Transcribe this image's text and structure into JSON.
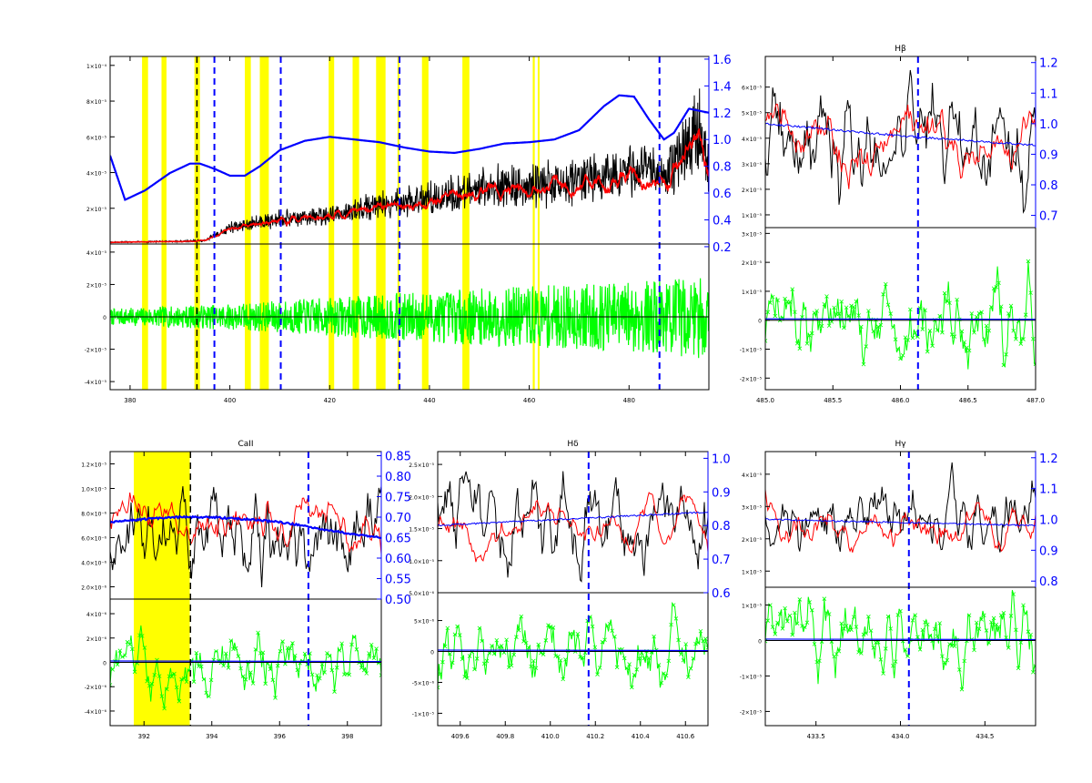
{
  "figure": {
    "colors": {
      "observed": "#000000",
      "model": "#ff0000",
      "continuum": "#0000ff",
      "residual": "#00ff00",
      "mask": "#ffff00",
      "line_marker": "#0000ff"
    }
  },
  "chart_data": [
    {
      "id": "overview",
      "type": "line",
      "title": "",
      "xlim": [
        376,
        496
      ],
      "xticks": [
        "380",
        "400",
        "420",
        "440",
        "460",
        "480"
      ],
      "xtick_values": [
        380,
        400,
        420,
        440,
        460,
        480
      ],
      "top": {
        "ylim": [
          0,
          0.000105
        ],
        "yticks": [
          "2×10⁻⁵",
          "4×10⁻⁵",
          "6×10⁻⁵",
          "8×10⁻⁵",
          "1×10⁻⁴"
        ],
        "ytick_values": [
          2e-05,
          4e-05,
          6e-05,
          8e-05,
          0.0001
        ],
        "ylim_right": [
          0.22,
          1.62
        ],
        "yticks_right": [
          "0.2",
          "0.4",
          "0.6",
          "0.8",
          "1.0",
          "1.2",
          "1.4",
          "1.6"
        ],
        "ytick_values_right": [
          0.2,
          0.4,
          0.6,
          0.8,
          1.0,
          1.2,
          1.4,
          1.6
        ],
        "continuum": {
          "x": [
            376,
            379,
            383,
            388,
            392,
            394,
            397,
            400,
            403,
            406,
            410,
            415,
            420,
            425,
            430,
            435,
            440,
            445,
            450,
            455,
            460,
            465,
            470,
            475,
            478,
            481,
            484,
            487,
            489,
            492,
            496
          ],
          "y": [
            0.88,
            0.55,
            0.62,
            0.75,
            0.82,
            0.82,
            0.78,
            0.73,
            0.73,
            0.8,
            0.92,
            0.99,
            1.02,
            1.0,
            0.98,
            0.94,
            0.91,
            0.9,
            0.93,
            0.97,
            0.98,
            1.0,
            1.07,
            1.25,
            1.33,
            1.32,
            1.15,
            1.0,
            1.05,
            1.23,
            1.2
          ]
        },
        "observed_trend": {
          "x": [
            376,
            390,
            395,
            400,
            410,
            420,
            430,
            440,
            450,
            460,
            470,
            480,
            487,
            490,
            494,
            496
          ],
          "y": [
            1e-06,
            1.5e-06,
            2e-06,
            9e-06,
            1.4e-05,
            1.6e-05,
            2.2e-05,
            2.5e-05,
            3.1e-05,
            3.3e-05,
            3.6e-05,
            4.2e-05,
            3.8e-05,
            4.8e-05,
            6.6e-05,
            4e-05
          ]
        }
      },
      "bottom": {
        "ylim": [
          -4.5e-05,
          4.5e-05
        ],
        "yticks": [
          "-4×10⁻⁵",
          "-2×10⁻⁵",
          "0",
          "2×10⁻⁵",
          "4×10⁻⁵"
        ],
        "ytick_values": [
          -4e-05,
          -2e-05,
          0,
          2e-05,
          4e-05
        ],
        "residual_amplitude": {
          "x": [
            376,
            400,
            420,
            440,
            460,
            480,
            496
          ],
          "y": [
            5e-06,
            8e-06,
            1.2e-05,
            1.6e-05,
            1.9e-05,
            2.2e-05,
            2.6e-05
          ]
        }
      },
      "mask_bands": [
        [
          382.4,
          383.6
        ],
        [
          386.3,
          387.3
        ],
        [
          392.9,
          394.0
        ],
        [
          403.0,
          404.2
        ],
        [
          406.0,
          407.8
        ],
        [
          419.8,
          420.9
        ],
        [
          424.6,
          425.9
        ],
        [
          429.3,
          431.2
        ],
        [
          433.6,
          433.9
        ],
        [
          438.5,
          439.8
        ],
        [
          446.6,
          448.0
        ],
        [
          460.7,
          461.1
        ],
        [
          461.7,
          462.0
        ]
      ],
      "markers_black": [
        393.4
      ],
      "markers_blue": [
        396.9,
        410.2,
        434.0,
        486.1
      ]
    },
    {
      "id": "h-beta",
      "type": "line",
      "title": "Hβ",
      "xlim": [
        485.0,
        487.0
      ],
      "xticks": [
        "485.0",
        "485.5",
        "486.0",
        "486.5",
        "487.0"
      ],
      "xtick_values": [
        485.0,
        485.5,
        486.0,
        486.5,
        487.0
      ],
      "top": {
        "ylim": [
          5e-06,
          7.2e-05
        ],
        "yticks": [
          "1×10⁻⁵",
          "2×10⁻⁵",
          "3×10⁻⁵",
          "4×10⁻⁵",
          "5×10⁻⁵",
          "6×10⁻⁵"
        ],
        "ytick_values": [
          1e-05,
          2e-05,
          3e-05,
          4e-05,
          5e-05,
          6e-05
        ],
        "ylim_right": [
          0.66,
          1.22
        ],
        "yticks_right": [
          "0.7",
          "0.8",
          "0.9",
          "1.0",
          "1.1",
          "1.2"
        ],
        "ytick_values_right": [
          0.7,
          0.8,
          0.9,
          1.0,
          1.1,
          1.2
        ],
        "continuum": {
          "x": [
            485.0,
            485.5,
            486.0,
            486.5,
            487.0
          ],
          "y": [
            1.0,
            0.98,
            0.96,
            0.945,
            0.93
          ]
        },
        "observed_level": 4e-05,
        "model_level": 3.8e-05
      },
      "bottom": {
        "ylim": [
          -2.4e-05,
          3.2e-05
        ],
        "yticks": [
          "-2×10⁻⁵",
          "-1×10⁻⁵",
          "0",
          "1×10⁻⁵",
          "2×10⁻⁵",
          "3×10⁻⁵"
        ],
        "ytick_values": [
          -2e-05,
          -1e-05,
          0,
          1e-05,
          2e-05,
          3e-05
        ]
      },
      "markers_black": [],
      "markers_blue": [
        486.13
      ],
      "mask_bands": []
    },
    {
      "id": "ca-ii",
      "type": "line",
      "title": "CaII",
      "xlim": [
        391.0,
        399.0
      ],
      "xticks": [
        "392",
        "394",
        "396",
        "398"
      ],
      "xtick_values": [
        392,
        394,
        396,
        398
      ],
      "top": {
        "ylim": [
          1e-06,
          1.3e-05
        ],
        "yticks": [
          "2.0×10⁻⁶",
          "4.0×10⁻⁶",
          "6.0×10⁻⁶",
          "8.0×10⁻⁶",
          "1.0×10⁻⁵",
          "1.2×10⁻⁵"
        ],
        "ytick_values": [
          2e-06,
          4e-06,
          6e-06,
          8e-06,
          1e-05,
          1.2e-05
        ],
        "ylim_right": [
          0.5,
          0.86
        ],
        "yticks_right": [
          "0.50",
          "0.55",
          "0.60",
          "0.65",
          "0.70",
          "0.75",
          "0.80",
          "0.85"
        ],
        "ytick_values_right": [
          0.5,
          0.55,
          0.6,
          0.65,
          0.7,
          0.75,
          0.8,
          0.85
        ],
        "continuum": {
          "x": [
            391.0,
            392.0,
            393.0,
            394.0,
            395.0,
            396.0,
            397.0,
            398.0,
            399.0
          ],
          "y": [
            0.687,
            0.695,
            0.7,
            0.7,
            0.695,
            0.688,
            0.675,
            0.66,
            0.65
          ]
        }
      },
      "bottom": {
        "ylim": [
          -5.2e-06,
          5.2e-06
        ],
        "yticks": [
          "-4×10⁻⁶",
          "-2×10⁻⁶",
          "0",
          "2×10⁻⁶",
          "4×10⁻⁶"
        ],
        "ytick_values": [
          -4e-06,
          -2e-06,
          0,
          2e-06,
          4e-06
        ]
      },
      "mask_bands": [
        [
          391.7,
          393.35
        ]
      ],
      "markers_black": [
        393.37
      ],
      "markers_blue": [
        396.85
      ]
    },
    {
      "id": "h-delta",
      "type": "line",
      "title": "Hδ",
      "xlim": [
        409.5,
        410.7
      ],
      "xticks": [
        "409.6",
        "409.8",
        "410.0",
        "410.2",
        "410.4",
        "410.6"
      ],
      "xtick_values": [
        409.6,
        409.8,
        410.0,
        410.2,
        410.4,
        410.6
      ],
      "top": {
        "ylim": [
          5e-06,
          2.7e-05
        ],
        "yticks": [
          "5.0×10⁻⁶",
          "1.0×10⁻⁵",
          "1.5×10⁻⁵",
          "2.0×10⁻⁵",
          "2.5×10⁻⁵"
        ],
        "ytick_values": [
          5e-06,
          1e-05,
          1.5e-05,
          2e-05,
          2.5e-05
        ],
        "ylim_right": [
          0.6,
          1.02
        ],
        "yticks_right": [
          "0.6",
          "0.7",
          "0.8",
          "0.9",
          "1.0"
        ],
        "ytick_values_right": [
          0.6,
          0.7,
          0.8,
          0.9,
          1.0
        ],
        "continuum": {
          "x": [
            409.5,
            409.8,
            410.1,
            410.4,
            410.7
          ],
          "y": [
            0.8,
            0.81,
            0.82,
            0.83,
            0.84
          ]
        }
      },
      "bottom": {
        "ylim": [
          -1.2e-05,
          9.5e-06
        ],
        "yticks": [
          "-1×10⁻⁵",
          "-5×10⁻⁶",
          "0",
          "5×10⁻⁶"
        ],
        "ytick_values": [
          -1e-05,
          -5e-06,
          0,
          5e-06
        ]
      },
      "mask_bands": [],
      "markers_black": [],
      "markers_blue": [
        410.17
      ]
    },
    {
      "id": "h-gamma",
      "type": "line",
      "title": "Hγ",
      "xlim": [
        433.2,
        434.8
      ],
      "xticks": [
        "433.5",
        "434.0",
        "434.5"
      ],
      "xtick_values": [
        433.5,
        434.0,
        434.5
      ],
      "top": {
        "ylim": [
          5e-06,
          4.7e-05
        ],
        "yticks": [
          "1×10⁻⁵",
          "2×10⁻⁵",
          "3×10⁻⁵",
          "4×10⁻⁵"
        ],
        "ytick_values": [
          1e-05,
          2e-05,
          3e-05,
          4e-05
        ],
        "ylim_right": [
          0.78,
          1.22
        ],
        "yticks_right": [
          "0.8",
          "0.9",
          "1.0",
          "1.1",
          "1.2"
        ],
        "ytick_values_right": [
          0.8,
          0.9,
          1.0,
          1.1,
          1.2
        ],
        "continuum": {
          "x": [
            433.2,
            433.6,
            434.0,
            434.4,
            434.8
          ],
          "y": [
            1.0,
            0.995,
            0.99,
            0.985,
            0.98
          ]
        }
      },
      "bottom": {
        "ylim": [
          -2.4e-05,
          1.5e-05
        ],
        "yticks": [
          "-2×10⁻⁵",
          "-1×10⁻⁵",
          "0",
          "1×10⁻⁵"
        ],
        "ytick_values": [
          -2e-05,
          -1e-05,
          0,
          1e-05
        ]
      },
      "mask_bands": [],
      "markers_black": [],
      "markers_blue": [
        434.05
      ]
    }
  ]
}
